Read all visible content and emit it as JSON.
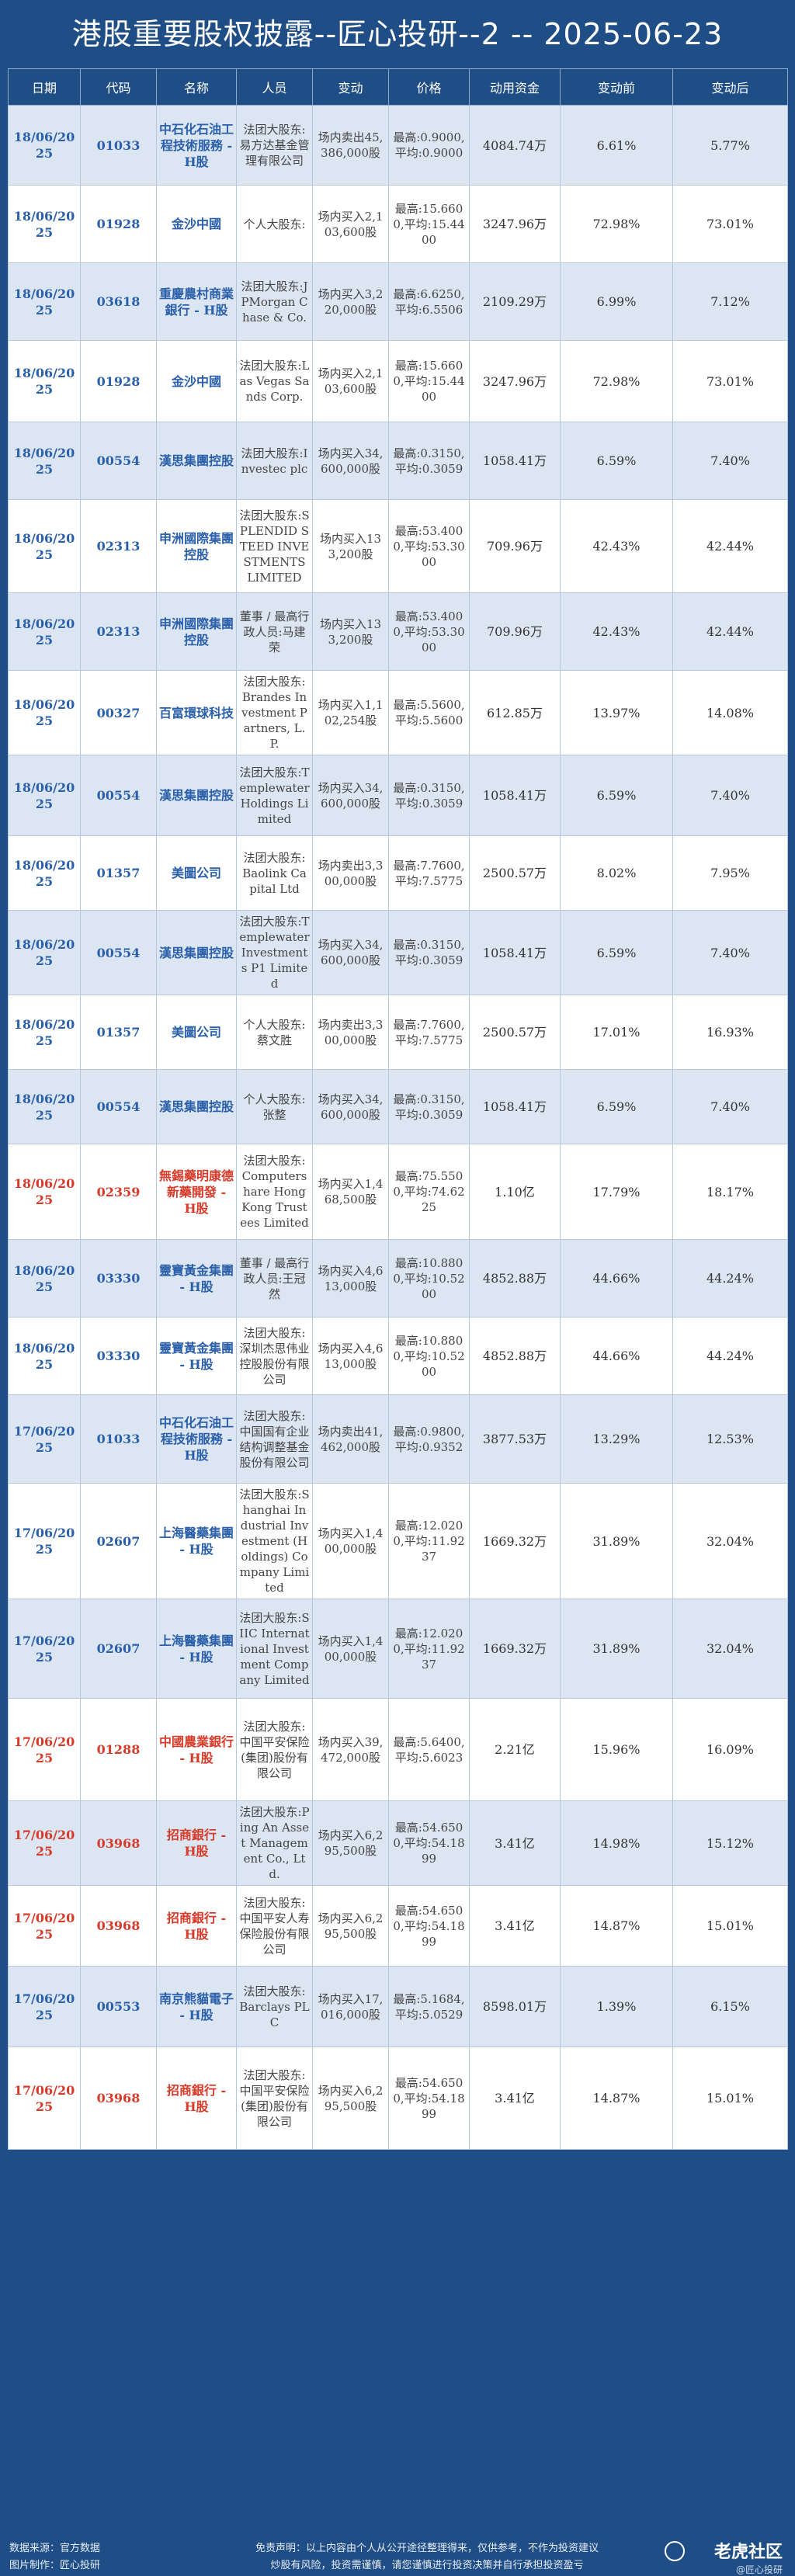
{
  "title": "港股重要股权披露--匠心投研--2 -- 2025-06-23",
  "headers": [
    "日期",
    "代码",
    "名称",
    "人员",
    "变动",
    "价格",
    "动用资金",
    "变动前",
    "变动后"
  ],
  "rows": [
    {
      "date": "18/06/2025",
      "code": "01033",
      "name": "中石化石油工程技術服務 - H股",
      "person": "法团大股东:易方达基金管理有限公司",
      "change": "场内卖出45,386,000股",
      "price": "最高:0.9000,平均:0.9000",
      "funds": "4084.74万",
      "before": "6.61%",
      "after": "5.77%",
      "hl": false
    },
    {
      "date": "18/06/2025",
      "code": "01928",
      "name": "金沙中國",
      "person": "个人大股东:",
      "change": "场内买入2,103,600股",
      "price": "最高:15.6600,平均:15.4400",
      "funds": "3247.96万",
      "before": "72.98%",
      "after": "73.01%",
      "hl": false
    },
    {
      "date": "18/06/2025",
      "code": "03618",
      "name": "重慶農村商業銀行 - H股",
      "person": "法团大股东:JPMorgan Chase & Co.",
      "change": "场内买入3,220,000股",
      "price": "最高:6.6250,平均:6.5506",
      "funds": "2109.29万",
      "before": "6.99%",
      "after": "7.12%",
      "hl": false
    },
    {
      "date": "18/06/2025",
      "code": "01928",
      "name": "金沙中國",
      "person": "法团大股东:Las Vegas Sands Corp.",
      "change": "场内买入2,103,600股",
      "price": "最高:15.6600,平均:15.4400",
      "funds": "3247.96万",
      "before": "72.98%",
      "after": "73.01%",
      "hl": false
    },
    {
      "date": "18/06/2025",
      "code": "00554",
      "name": "漢思集團控股",
      "person": "法团大股东:Investec plc",
      "change": "场内买入34,600,000股",
      "price": "最高:0.3150,平均:0.3059",
      "funds": "1058.41万",
      "before": "6.59%",
      "after": "7.40%",
      "hl": false
    },
    {
      "date": "18/06/2025",
      "code": "02313",
      "name": "申洲國際集團控股",
      "person": "法团大股东:SPLENDID STEED INVESTMENTS LIMITED",
      "change": "场内买入133,200股",
      "price": "最高:53.4000,平均:53.3000",
      "funds": "709.96万",
      "before": "42.43%",
      "after": "42.44%",
      "hl": false
    },
    {
      "date": "18/06/2025",
      "code": "02313",
      "name": "申洲國際集團控股",
      "person": "董事 / 最高行政人员:马建荣",
      "change": "场内买入133,200股",
      "price": "最高:53.4000,平均:53.3000",
      "funds": "709.96万",
      "before": "42.43%",
      "after": "42.44%",
      "hl": false
    },
    {
      "date": "18/06/2025",
      "code": "00327",
      "name": "百富環球科技",
      "person": "法团大股东:Brandes Investment Partners, L.P.",
      "change": "场内买入1,102,254股",
      "price": "最高:5.5600,平均:5.5600",
      "funds": "612.85万",
      "before": "13.97%",
      "after": "14.08%",
      "hl": false
    },
    {
      "date": "18/06/2025",
      "code": "00554",
      "name": "漢思集團控股",
      "person": "法团大股东:Templewater Holdings Limited",
      "change": "场内买入34,600,000股",
      "price": "最高:0.3150,平均:0.3059",
      "funds": "1058.41万",
      "before": "6.59%",
      "after": "7.40%",
      "hl": false
    },
    {
      "date": "18/06/2025",
      "code": "01357",
      "name": "美圖公司",
      "person": "法团大股东:Baolink Capital Ltd",
      "change": "场内卖出3,300,000股",
      "price": "最高:7.7600,平均:7.5775",
      "funds": "2500.57万",
      "before": "8.02%",
      "after": "7.95%",
      "hl": false
    },
    {
      "date": "18/06/2025",
      "code": "00554",
      "name": "漢思集團控股",
      "person": "法团大股东:Templewater Investments P1 Limited",
      "change": "场内买入34,600,000股",
      "price": "最高:0.3150,平均:0.3059",
      "funds": "1058.41万",
      "before": "6.59%",
      "after": "7.40%",
      "hl": false
    },
    {
      "date": "18/06/2025",
      "code": "01357",
      "name": "美圖公司",
      "person": "个人大股东:蔡文胜",
      "change": "场内卖出3,300,000股",
      "price": "最高:7.7600,平均:7.5775",
      "funds": "2500.57万",
      "before": "17.01%",
      "after": "16.93%",
      "hl": false
    },
    {
      "date": "18/06/2025",
      "code": "00554",
      "name": "漢思集團控股",
      "person": "个人大股东:张整",
      "change": "场内买入34,600,000股",
      "price": "最高:0.3150,平均:0.3059",
      "funds": "1058.41万",
      "before": "6.59%",
      "after": "7.40%",
      "hl": false
    },
    {
      "date": "18/06/2025",
      "code": "02359",
      "name": "無錫藥明康德新藥開發 - H股",
      "person": "法团大股东:Computershare Hong Kong Trustees Limited",
      "change": "场内买入1,468,500股",
      "price": "最高:75.5500,平均:74.6225",
      "funds": "1.10亿",
      "before": "17.79%",
      "after": "18.17%",
      "hl": true
    },
    {
      "date": "18/06/2025",
      "code": "03330",
      "name": "靈寶黃金集團 - H股",
      "person": "董事 / 最高行政人员:王冠然",
      "change": "场内买入4,613,000股",
      "price": "最高:10.8800,平均:10.5200",
      "funds": "4852.88万",
      "before": "44.66%",
      "after": "44.24%",
      "hl": false
    },
    {
      "date": "18/06/2025",
      "code": "03330",
      "name": "靈寶黃金集團 - H股",
      "person": "法团大股东:深圳杰思伟业控股股份有限公司",
      "change": "场内买入4,613,000股",
      "price": "最高:10.8800,平均:10.5200",
      "funds": "4852.88万",
      "before": "44.66%",
      "after": "44.24%",
      "hl": false
    },
    {
      "date": "17/06/2025",
      "code": "01033",
      "name": "中石化石油工程技術服務 - H股",
      "person": "法团大股东:中国国有企业结构调整基金股份有限公司",
      "change": "场内卖出41,462,000股",
      "price": "最高:0.9800,平均:0.9352",
      "funds": "3877.53万",
      "before": "13.29%",
      "after": "12.53%",
      "hl": false
    },
    {
      "date": "17/06/2025",
      "code": "02607",
      "name": "上海醫藥集團 - H股",
      "person": "法团大股东:Shanghai Industrial Investment (Holdings) Company Limited",
      "change": "场内买入1,400,000股",
      "price": "最高:12.0200,平均:11.9237",
      "funds": "1669.32万",
      "before": "31.89%",
      "after": "32.04%",
      "hl": false
    },
    {
      "date": "17/06/2025",
      "code": "02607",
      "name": "上海醫藥集團 - H股",
      "person": "法团大股东:SIIC International Investment Company Limited",
      "change": "场内买入1,400,000股",
      "price": "最高:12.0200,平均:11.9237",
      "funds": "1669.32万",
      "before": "31.89%",
      "after": "32.04%",
      "hl": false
    },
    {
      "date": "17/06/2025",
      "code": "01288",
      "name": "中國農業銀行 - H股",
      "person": "法团大股东:中国平安保险(集团)股份有限公司",
      "change": "场内买入39,472,000股",
      "price": "最高:5.6400,平均:5.6023",
      "funds": "2.21亿",
      "before": "15.96%",
      "after": "16.09%",
      "hl": true
    },
    {
      "date": "17/06/2025",
      "code": "03968",
      "name": "招商銀行 - H股",
      "person": "法团大股东:Ping An Asset Management Co., Ltd.",
      "change": "场内买入6,295,500股",
      "price": "最高:54.6500,平均:54.1899",
      "funds": "3.41亿",
      "before": "14.98%",
      "after": "15.12%",
      "hl": true
    },
    {
      "date": "17/06/2025",
      "code": "03968",
      "name": "招商銀行 - H股",
      "person": "法团大股东:中国平安人寿保险股份有限公司",
      "change": "场内买入6,295,500股",
      "price": "最高:54.6500,平均:54.1899",
      "funds": "3.41亿",
      "before": "14.87%",
      "after": "15.01%",
      "hl": true
    },
    {
      "date": "17/06/2025",
      "code": "00553",
      "name": "南京熊貓電子 - H股",
      "person": "法团大股东:Barclays PLC",
      "change": "场内买入17,016,000股",
      "price": "最高:5.1684,平均:5.0529",
      "funds": "8598.01万",
      "before": "1.39%",
      "after": "6.15%",
      "hl": false
    },
    {
      "date": "17/06/2025",
      "code": "03968",
      "name": "招商銀行 - H股",
      "person": "法团大股东:中国平安保险(集团)股份有限公司",
      "change": "场内买入6,295,500股",
      "price": "最高:54.6500,平均:54.1899",
      "funds": "3.41亿",
      "before": "14.87%",
      "after": "15.01%",
      "hl": true
    }
  ],
  "row_heights": [],
  "footer": {
    "source": "数据来源：官方数据",
    "maker": "图片制作：匠心投研",
    "disclaimer1": "免责声明：以上内容由个人从公开途径整理得来，仅供参考，不作为投资建议",
    "disclaimer2": "炒股有风险，投资需谨慎，请您谨慎进行投资决策并自行承担投资盈亏",
    "brand": "老虎社区",
    "brand_sub": "@匠心投研"
  }
}
